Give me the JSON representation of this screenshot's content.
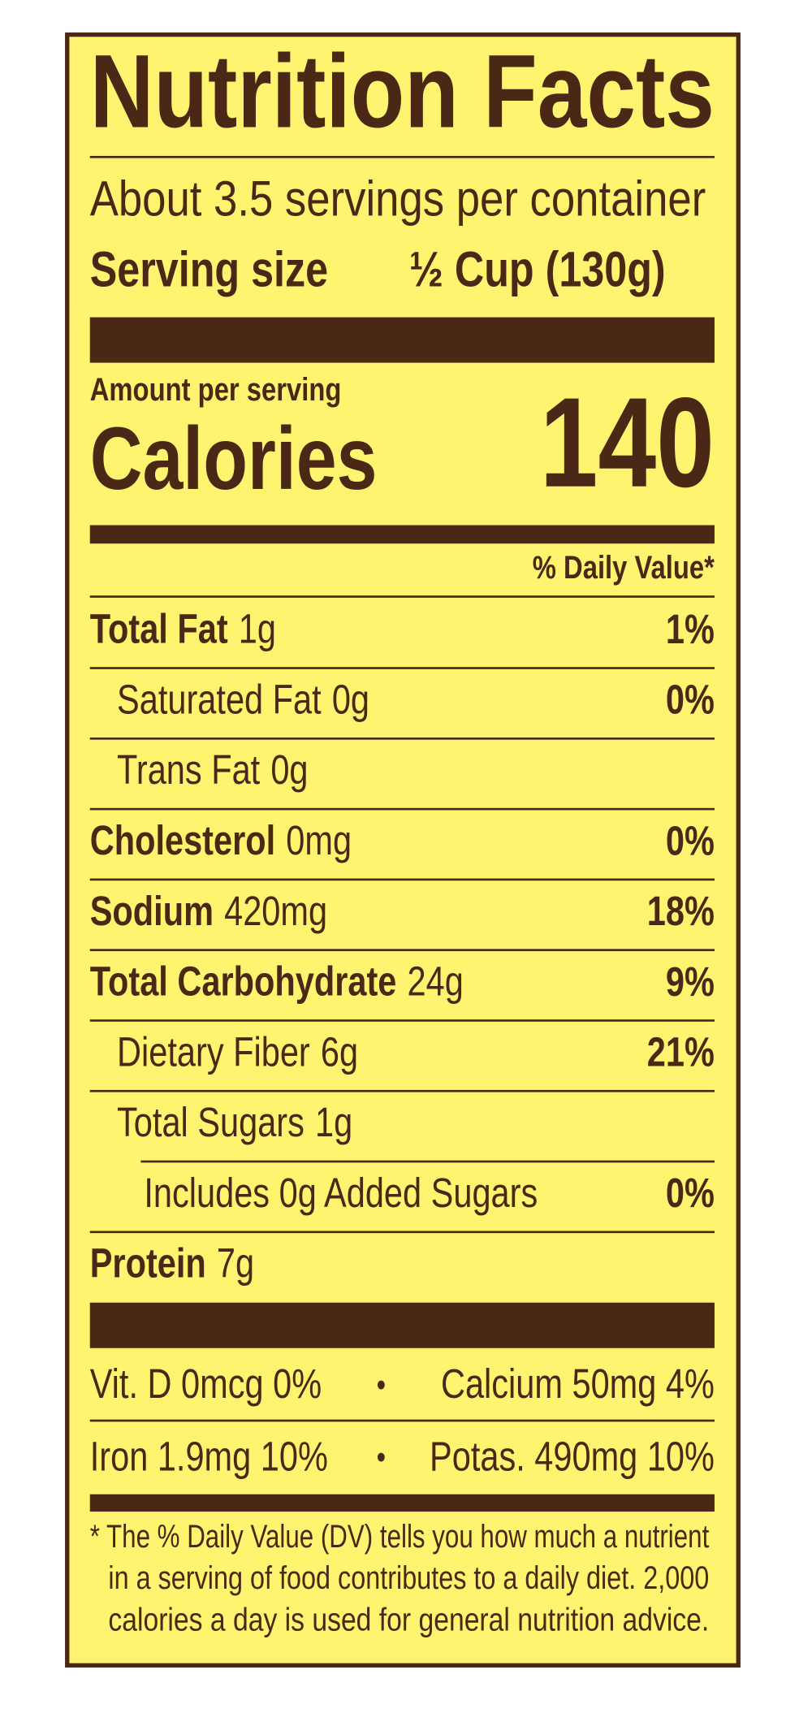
{
  "header": {
    "title": "Nutrition Facts",
    "servings": "About 3.5 servings per container",
    "serving_size_label": "Serving size",
    "serving_size_value": "½ Cup (130g)"
  },
  "calories": {
    "amount_label": "Amount per serving",
    "label": "Calories",
    "value": "140"
  },
  "daily_value_header": "% Daily Value*",
  "nutrients": [
    {
      "name": "Total Fat",
      "amount": "1g",
      "dv": "1%"
    },
    {
      "name": "Saturated Fat",
      "amount": "0g",
      "dv": "0%"
    },
    {
      "name": "Trans Fat",
      "amount": "0g"
    },
    {
      "name": "Cholesterol",
      "amount": "0mg",
      "dv": "0%"
    },
    {
      "name": "Sodium",
      "amount": "420mg",
      "dv": "18%"
    },
    {
      "name": "Total Carbohydrate",
      "amount": "24g",
      "dv": "9%"
    },
    {
      "name": "Dietary Fiber",
      "amount": "6g",
      "dv": "21%"
    },
    {
      "name": "Total Sugars",
      "amount": "1g"
    },
    {
      "name": "Includes 0g Added Sugars",
      "dv": "0%"
    },
    {
      "name": "Protein",
      "amount": "7g"
    }
  ],
  "vitamins": [
    [
      "Vit. D  0mcg  0%",
      "Calcium  50mg  4%"
    ],
    [
      "Iron  1.9mg  10%",
      "Potas.  490mg  10%"
    ]
  ],
  "separator": "•",
  "footnote": [
    "* The % Daily Value (DV) tells you how much a nutrient",
    "in a serving of food contributes to a daily diet. 2,000",
    "calories a day is used for general nutrition advice."
  ]
}
